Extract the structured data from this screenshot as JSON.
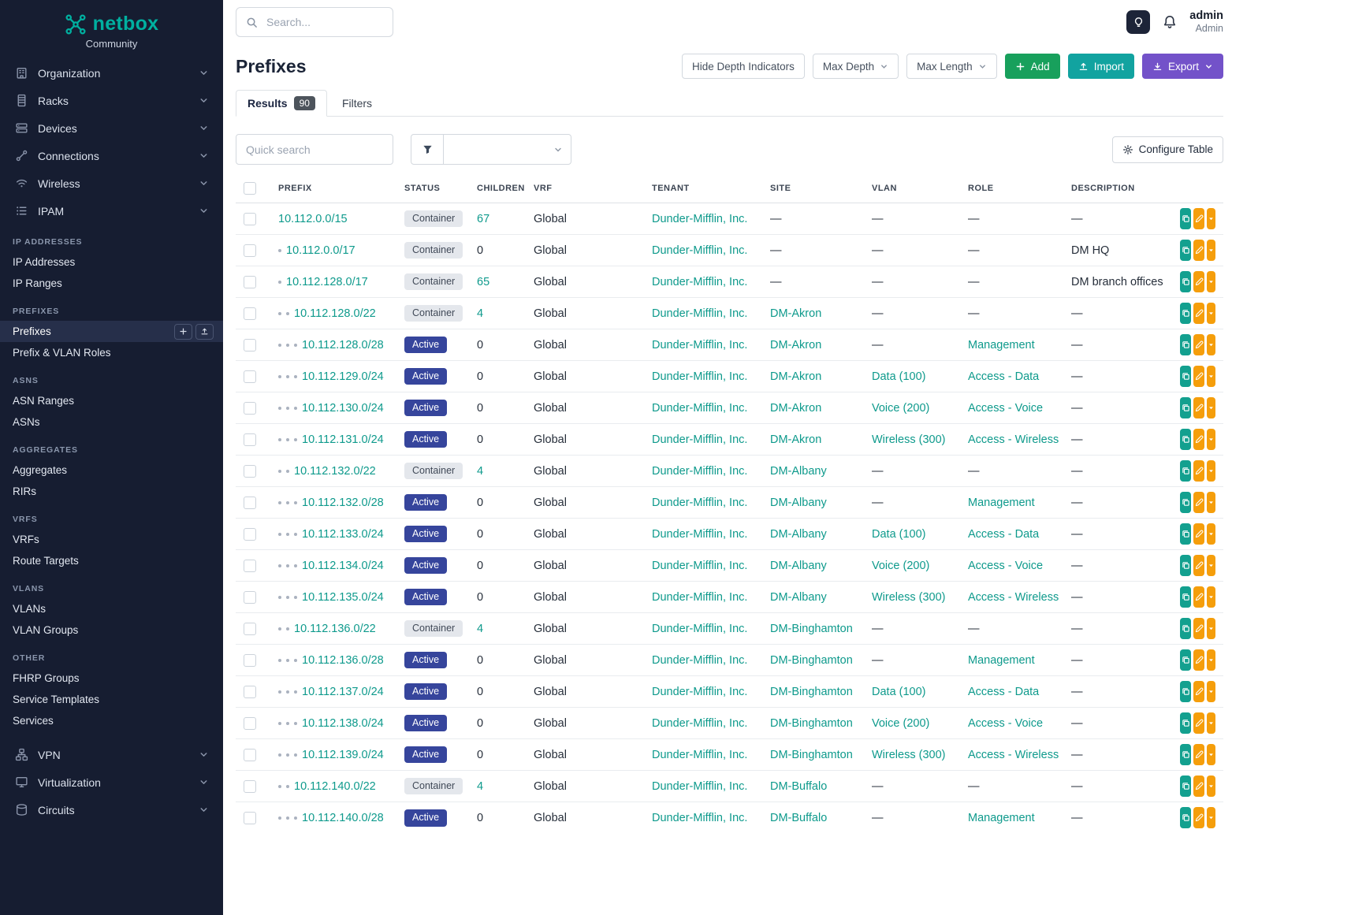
{
  "brand": {
    "name": "netbox",
    "subtitle": "Community"
  },
  "topbar": {
    "search_placeholder": "Search...",
    "user_name": "admin",
    "user_role": "Admin"
  },
  "sidebar": {
    "top_items": [
      {
        "label": "Organization",
        "icon": "organization-icon"
      },
      {
        "label": "Racks",
        "icon": "racks-icon"
      },
      {
        "label": "Devices",
        "icon": "devices-icon"
      },
      {
        "label": "Connections",
        "icon": "connections-icon"
      },
      {
        "label": "Wireless",
        "icon": "wireless-icon"
      },
      {
        "label": "IPAM",
        "icon": "ipam-icon",
        "expanded": true
      }
    ],
    "ipam_sections": [
      {
        "header": "IP ADDRESSES",
        "items": [
          {
            "label": "IP Addresses"
          },
          {
            "label": "IP Ranges"
          }
        ]
      },
      {
        "header": "PREFIXES",
        "items": [
          {
            "label": "Prefixes",
            "active": true
          },
          {
            "label": "Prefix & VLAN Roles"
          }
        ]
      },
      {
        "header": "ASNS",
        "items": [
          {
            "label": "ASN Ranges"
          },
          {
            "label": "ASNs"
          }
        ]
      },
      {
        "header": "AGGREGATES",
        "items": [
          {
            "label": "Aggregates"
          },
          {
            "label": "RIRs"
          }
        ]
      },
      {
        "header": "VRFS",
        "items": [
          {
            "label": "VRFs"
          },
          {
            "label": "Route Targets"
          }
        ]
      },
      {
        "header": "VLANS",
        "items": [
          {
            "label": "VLANs"
          },
          {
            "label": "VLAN Groups"
          }
        ]
      },
      {
        "header": "OTHER",
        "items": [
          {
            "label": "FHRP Groups"
          },
          {
            "label": "Service Templates"
          },
          {
            "label": "Services"
          }
        ]
      }
    ],
    "bottom_items": [
      {
        "label": "VPN",
        "icon": "vpn-icon"
      },
      {
        "label": "Virtualization",
        "icon": "virtualization-icon"
      },
      {
        "label": "Circuits",
        "icon": "circuits-icon"
      }
    ]
  },
  "page": {
    "title": "Prefixes",
    "actions": {
      "hide_depth": "Hide Depth Indicators",
      "max_depth": "Max Depth",
      "max_length": "Max Length",
      "add": "Add",
      "import": "Import",
      "export": "Export"
    },
    "tabs": [
      {
        "label": "Results",
        "badge": "90",
        "active": true
      },
      {
        "label": "Filters",
        "active": false
      }
    ],
    "quick_search_placeholder": "Quick search",
    "configure_table": "Configure Table"
  },
  "table": {
    "headers": [
      "PREFIX",
      "STATUS",
      "CHILDREN",
      "VRF",
      "TENANT",
      "SITE",
      "VLAN",
      "ROLE",
      "DESCRIPTION"
    ],
    "rows": [
      {
        "depth": 0,
        "prefix": "10.112.0.0/15",
        "status": "Container",
        "children": "67",
        "vrf": "Global",
        "tenant": "Dunder-Mifflin, Inc.",
        "site": "—",
        "vlan": "—",
        "role": "—",
        "description": "—"
      },
      {
        "depth": 1,
        "prefix": "10.112.0.0/17",
        "status": "Container",
        "children": "0",
        "vrf": "Global",
        "tenant": "Dunder-Mifflin, Inc.",
        "site": "—",
        "vlan": "—",
        "role": "—",
        "description": "DM HQ"
      },
      {
        "depth": 1,
        "prefix": "10.112.128.0/17",
        "status": "Container",
        "children": "65",
        "vrf": "Global",
        "tenant": "Dunder-Mifflin, Inc.",
        "site": "—",
        "vlan": "—",
        "role": "—",
        "description": "DM branch offices"
      },
      {
        "depth": 2,
        "prefix": "10.112.128.0/22",
        "status": "Container",
        "children": "4",
        "vrf": "Global",
        "tenant": "Dunder-Mifflin, Inc.",
        "site": "DM-Akron",
        "vlan": "—",
        "role": "—",
        "description": "—"
      },
      {
        "depth": 3,
        "prefix": "10.112.128.0/28",
        "status": "Active",
        "children": "0",
        "vrf": "Global",
        "tenant": "Dunder-Mifflin, Inc.",
        "site": "DM-Akron",
        "vlan": "—",
        "role": "Management",
        "description": "—"
      },
      {
        "depth": 3,
        "prefix": "10.112.129.0/24",
        "status": "Active",
        "children": "0",
        "vrf": "Global",
        "tenant": "Dunder-Mifflin, Inc.",
        "site": "DM-Akron",
        "vlan": "Data (100)",
        "role": "Access - Data",
        "description": "—"
      },
      {
        "depth": 3,
        "prefix": "10.112.130.0/24",
        "status": "Active",
        "children": "0",
        "vrf": "Global",
        "tenant": "Dunder-Mifflin, Inc.",
        "site": "DM-Akron",
        "vlan": "Voice (200)",
        "role": "Access - Voice",
        "description": "—"
      },
      {
        "depth": 3,
        "prefix": "10.112.131.0/24",
        "status": "Active",
        "children": "0",
        "vrf": "Global",
        "tenant": "Dunder-Mifflin, Inc.",
        "site": "DM-Akron",
        "vlan": "Wireless (300)",
        "role": "Access - Wireless",
        "description": "—"
      },
      {
        "depth": 2,
        "prefix": "10.112.132.0/22",
        "status": "Container",
        "children": "4",
        "vrf": "Global",
        "tenant": "Dunder-Mifflin, Inc.",
        "site": "DM-Albany",
        "vlan": "—",
        "role": "—",
        "description": "—"
      },
      {
        "depth": 3,
        "prefix": "10.112.132.0/28",
        "status": "Active",
        "children": "0",
        "vrf": "Global",
        "tenant": "Dunder-Mifflin, Inc.",
        "site": "DM-Albany",
        "vlan": "—",
        "role": "Management",
        "description": "—"
      },
      {
        "depth": 3,
        "prefix": "10.112.133.0/24",
        "status": "Active",
        "children": "0",
        "vrf": "Global",
        "tenant": "Dunder-Mifflin, Inc.",
        "site": "DM-Albany",
        "vlan": "Data (100)",
        "role": "Access - Data",
        "description": "—"
      },
      {
        "depth": 3,
        "prefix": "10.112.134.0/24",
        "status": "Active",
        "children": "0",
        "vrf": "Global",
        "tenant": "Dunder-Mifflin, Inc.",
        "site": "DM-Albany",
        "vlan": "Voice (200)",
        "role": "Access - Voice",
        "description": "—"
      },
      {
        "depth": 3,
        "prefix": "10.112.135.0/24",
        "status": "Active",
        "children": "0",
        "vrf": "Global",
        "tenant": "Dunder-Mifflin, Inc.",
        "site": "DM-Albany",
        "vlan": "Wireless (300)",
        "role": "Access - Wireless",
        "description": "—"
      },
      {
        "depth": 2,
        "prefix": "10.112.136.0/22",
        "status": "Container",
        "children": "4",
        "vrf": "Global",
        "tenant": "Dunder-Mifflin, Inc.",
        "site": "DM-Binghamton",
        "vlan": "—",
        "role": "—",
        "description": "—"
      },
      {
        "depth": 3,
        "prefix": "10.112.136.0/28",
        "status": "Active",
        "children": "0",
        "vrf": "Global",
        "tenant": "Dunder-Mifflin, Inc.",
        "site": "DM-Binghamton",
        "vlan": "—",
        "role": "Management",
        "description": "—"
      },
      {
        "depth": 3,
        "prefix": "10.112.137.0/24",
        "status": "Active",
        "children": "0",
        "vrf": "Global",
        "tenant": "Dunder-Mifflin, Inc.",
        "site": "DM-Binghamton",
        "vlan": "Data (100)",
        "role": "Access - Data",
        "description": "—"
      },
      {
        "depth": 3,
        "prefix": "10.112.138.0/24",
        "status": "Active",
        "children": "0",
        "vrf": "Global",
        "tenant": "Dunder-Mifflin, Inc.",
        "site": "DM-Binghamton",
        "vlan": "Voice (200)",
        "role": "Access - Voice",
        "description": "—"
      },
      {
        "depth": 3,
        "prefix": "10.112.139.0/24",
        "status": "Active",
        "children": "0",
        "vrf": "Global",
        "tenant": "Dunder-Mifflin, Inc.",
        "site": "DM-Binghamton",
        "vlan": "Wireless (300)",
        "role": "Access - Wireless",
        "description": "—"
      },
      {
        "depth": 2,
        "prefix": "10.112.140.0/22",
        "status": "Container",
        "children": "4",
        "vrf": "Global",
        "tenant": "Dunder-Mifflin, Inc.",
        "site": "DM-Buffalo",
        "vlan": "—",
        "role": "—",
        "description": "—"
      },
      {
        "depth": 3,
        "prefix": "10.112.140.0/28",
        "status": "Active",
        "children": "0",
        "vrf": "Global",
        "tenant": "Dunder-Mifflin, Inc.",
        "site": "DM-Buffalo",
        "vlan": "—",
        "role": "Management",
        "description": "—"
      }
    ]
  },
  "colors": {
    "brand_teal": "#00b0a0",
    "link_teal": "#0e9a8c",
    "badge_active_bg": "#36459c",
    "badge_container_bg": "#e4e7ec",
    "add_green": "#18a05c",
    "import_teal": "#12a3a0",
    "export_purple": "#7352c9",
    "edit_orange": "#f59e0b",
    "sidebar_bg": "#161d31"
  }
}
